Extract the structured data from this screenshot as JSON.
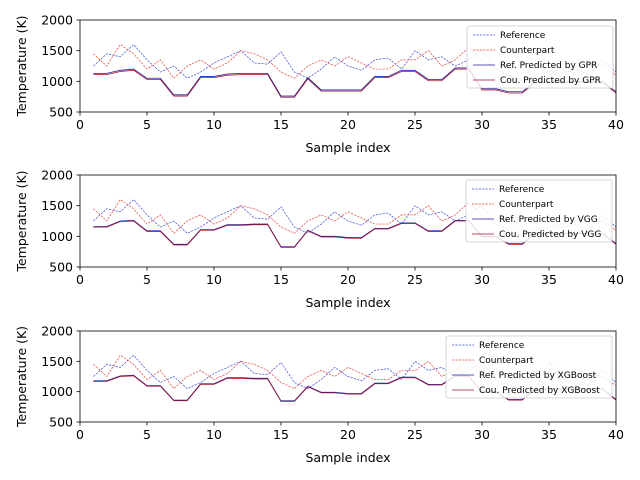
{
  "colors": {
    "reference": "#3a4fd6",
    "counterpart": "#e8453c",
    "ref_pred": "#1f1fa8",
    "cou_pred": "#a8142a",
    "legend_border": "#cccccc"
  },
  "chart_data": [
    {
      "type": "line",
      "xlabel": "Sample index",
      "ylabel": "Temperature (K)",
      "xlim": [
        0,
        40
      ],
      "ylim": [
        500,
        2000
      ],
      "xticks": [
        "0",
        "5",
        "10",
        "15",
        "20",
        "25",
        "30",
        "35",
        "40"
      ],
      "yticks": [
        "500",
        "1000",
        "1500",
        "2000"
      ],
      "legend_position": "top-right",
      "x": [
        1,
        2,
        3,
        4,
        5,
        6,
        7,
        8,
        9,
        10,
        11,
        12,
        13,
        14,
        15,
        16,
        17,
        18,
        19,
        20,
        21,
        22,
        23,
        24,
        25,
        26,
        27,
        28,
        29,
        30,
        31,
        32,
        33,
        34,
        35,
        36,
        37,
        38,
        39,
        40
      ],
      "series": [
        {
          "name": "Reference",
          "style": "dashed",
          "color_key": "reference",
          "values": [
            1250,
            1450,
            1400,
            1600,
            1350,
            1150,
            1250,
            1050,
            1150,
            1300,
            1400,
            1500,
            1300,
            1280,
            1480,
            1150,
            1050,
            1200,
            1400,
            1250,
            1180,
            1350,
            1380,
            1200,
            1500,
            1350,
            1400,
            1250,
            1350,
            1500,
            1200,
            1100,
            1000,
            1050,
            1100,
            1150,
            1200,
            1100,
            1350,
            1150
          ]
        },
        {
          "name": "Counterpart",
          "style": "dashed",
          "color_key": "counterpart",
          "values": [
            1450,
            1250,
            1600,
            1450,
            1200,
            1350,
            1050,
            1250,
            1350,
            1200,
            1300,
            1500,
            1450,
            1350,
            1150,
            1050,
            1250,
            1350,
            1250,
            1400,
            1300,
            1200,
            1200,
            1350,
            1350,
            1500,
            1250,
            1350,
            1550,
            1350,
            1200,
            1100,
            1000,
            1100,
            1150,
            1200,
            1250,
            1300,
            1250,
            1100
          ]
        },
        {
          "name": "Ref. Predicted by GPR",
          "style": "solid",
          "color_key": "ref_pred",
          "values": [
            1130,
            1130,
            1180,
            1200,
            1050,
            1050,
            780,
            780,
            1080,
            1080,
            1120,
            1130,
            1130,
            1130,
            760,
            760,
            1060,
            860,
            860,
            860,
            860,
            1080,
            1080,
            1180,
            1180,
            1030,
            1030,
            1220,
            1220,
            880,
            880,
            830,
            830,
            1000,
            1000,
            1000,
            1000,
            1000,
            1000,
            830
          ]
        },
        {
          "name": "Cou. Predicted by GPR",
          "style": "solid",
          "color_key": "cou_pred",
          "values": [
            1110,
            1110,
            1160,
            1180,
            1030,
            1030,
            760,
            760,
            1060,
            1060,
            1100,
            1110,
            1110,
            1110,
            740,
            740,
            1040,
            840,
            840,
            840,
            840,
            1060,
            1060,
            1160,
            1160,
            1010,
            1010,
            1200,
            1200,
            860,
            860,
            810,
            810,
            980,
            980,
            980,
            980,
            980,
            980,
            810
          ]
        }
      ]
    },
    {
      "type": "line",
      "xlabel": "Sample index",
      "ylabel": "Temperature (K)",
      "xlim": [
        0,
        40
      ],
      "ylim": [
        500,
        2000
      ],
      "xticks": [
        "0",
        "5",
        "10",
        "15",
        "20",
        "25",
        "30",
        "35",
        "40"
      ],
      "yticks": [
        "500",
        "1000",
        "1500",
        "2000"
      ],
      "legend_position": "top-right",
      "x": [
        1,
        2,
        3,
        4,
        5,
        6,
        7,
        8,
        9,
        10,
        11,
        12,
        13,
        14,
        15,
        16,
        17,
        18,
        19,
        20,
        21,
        22,
        23,
        24,
        25,
        26,
        27,
        28,
        29,
        30,
        31,
        32,
        33,
        34,
        35,
        36,
        37,
        38,
        39,
        40
      ],
      "series": [
        {
          "name": "Reference",
          "style": "dashed",
          "color_key": "reference",
          "values": [
            1250,
            1450,
            1400,
            1600,
            1350,
            1150,
            1250,
            1050,
            1150,
            1300,
            1400,
            1500,
            1300,
            1280,
            1480,
            1150,
            1050,
            1200,
            1400,
            1250,
            1180,
            1350,
            1380,
            1200,
            1500,
            1350,
            1400,
            1250,
            1350,
            1500,
            1200,
            1100,
            1000,
            1050,
            1100,
            1150,
            1200,
            1100,
            1350,
            1150
          ]
        },
        {
          "name": "Counterpart",
          "style": "dashed",
          "color_key": "counterpart",
          "values": [
            1450,
            1250,
            1600,
            1450,
            1200,
            1350,
            1050,
            1250,
            1350,
            1200,
            1300,
            1500,
            1450,
            1350,
            1150,
            1050,
            1250,
            1350,
            1250,
            1400,
            1300,
            1200,
            1200,
            1350,
            1350,
            1500,
            1250,
            1350,
            1550,
            1350,
            1200,
            1100,
            1000,
            1100,
            1150,
            1200,
            1250,
            1300,
            1250,
            1100
          ]
        },
        {
          "name": "Ref. Predicted by VGG",
          "style": "solid",
          "color_key": "ref_pred",
          "values": [
            1160,
            1160,
            1250,
            1260,
            1090,
            1090,
            870,
            870,
            1110,
            1110,
            1190,
            1190,
            1200,
            1200,
            830,
            830,
            1100,
            1000,
            1000,
            980,
            980,
            1130,
            1130,
            1220,
            1220,
            1090,
            1090,
            1260,
            1260,
            1000,
            1000,
            880,
            880,
            1050,
            1050,
            1050,
            1050,
            1050,
            1050,
            880
          ]
        },
        {
          "name": "Cou. Predicted by VGG",
          "style": "solid",
          "color_key": "cou_pred",
          "values": [
            1150,
            1150,
            1240,
            1250,
            1080,
            1080,
            860,
            860,
            1100,
            1100,
            1180,
            1180,
            1190,
            1190,
            820,
            820,
            1090,
            990,
            990,
            970,
            970,
            1120,
            1120,
            1210,
            1210,
            1080,
            1080,
            1250,
            1250,
            990,
            990,
            870,
            870,
            1040,
            1040,
            1040,
            1040,
            1040,
            1040,
            870
          ]
        }
      ]
    },
    {
      "type": "line",
      "xlabel": "Sample index",
      "ylabel": "Temperature (K)",
      "xlim": [
        0,
        40
      ],
      "ylim": [
        500,
        2000
      ],
      "xticks": [
        "0",
        "5",
        "10",
        "15",
        "20",
        "25",
        "30",
        "35",
        "40"
      ],
      "yticks": [
        "500",
        "1000",
        "1500",
        "2000"
      ],
      "legend_position": "top-right",
      "x": [
        1,
        2,
        3,
        4,
        5,
        6,
        7,
        8,
        9,
        10,
        11,
        12,
        13,
        14,
        15,
        16,
        17,
        18,
        19,
        20,
        21,
        22,
        23,
        24,
        25,
        26,
        27,
        28,
        29,
        30,
        31,
        32,
        33,
        34,
        35,
        36,
        37,
        38,
        39,
        40
      ],
      "series": [
        {
          "name": "Reference",
          "style": "dashed",
          "color_key": "reference",
          "values": [
            1250,
            1450,
            1400,
            1600,
            1350,
            1150,
            1250,
            1050,
            1150,
            1300,
            1400,
            1500,
            1300,
            1280,
            1480,
            1150,
            1050,
            1200,
            1400,
            1250,
            1180,
            1350,
            1380,
            1200,
            1500,
            1350,
            1400,
            1250,
            1350,
            1500,
            1200,
            1100,
            1000,
            1050,
            1500,
            1150,
            1200,
            1100,
            1350,
            1150
          ]
        },
        {
          "name": "Counterpart",
          "style": "dashed",
          "color_key": "counterpart",
          "values": [
            1450,
            1250,
            1600,
            1450,
            1200,
            1350,
            1050,
            1250,
            1350,
            1200,
            1300,
            1500,
            1450,
            1350,
            1150,
            1050,
            1250,
            1350,
            1250,
            1400,
            1300,
            1200,
            1200,
            1350,
            1350,
            1500,
            1250,
            1350,
            1550,
            1350,
            1200,
            1100,
            1000,
            1100,
            1150,
            1200,
            1250,
            1300,
            1250,
            1100
          ]
        },
        {
          "name": "Ref. Predicted by XGBoost",
          "style": "solid",
          "color_key": "ref_pred",
          "values": [
            1180,
            1180,
            1260,
            1270,
            1100,
            1100,
            860,
            860,
            1130,
            1130,
            1230,
            1230,
            1220,
            1220,
            850,
            850,
            1090,
            990,
            990,
            970,
            970,
            1140,
            1140,
            1240,
            1240,
            1120,
            1120,
            1260,
            1260,
            1000,
            1000,
            870,
            870,
            1050,
            1050,
            1050,
            1050,
            1050,
            1050,
            870
          ]
        },
        {
          "name": "Cou. Predicted by XGBoost",
          "style": "solid",
          "color_key": "cou_pred",
          "values": [
            1170,
            1170,
            1250,
            1260,
            1090,
            1090,
            850,
            850,
            1120,
            1120,
            1220,
            1220,
            1210,
            1210,
            840,
            840,
            1080,
            980,
            980,
            960,
            960,
            1130,
            1130,
            1230,
            1230,
            1110,
            1110,
            1250,
            1250,
            990,
            990,
            860,
            860,
            1040,
            1040,
            1040,
            1040,
            1040,
            1040,
            860
          ]
        }
      ]
    }
  ]
}
